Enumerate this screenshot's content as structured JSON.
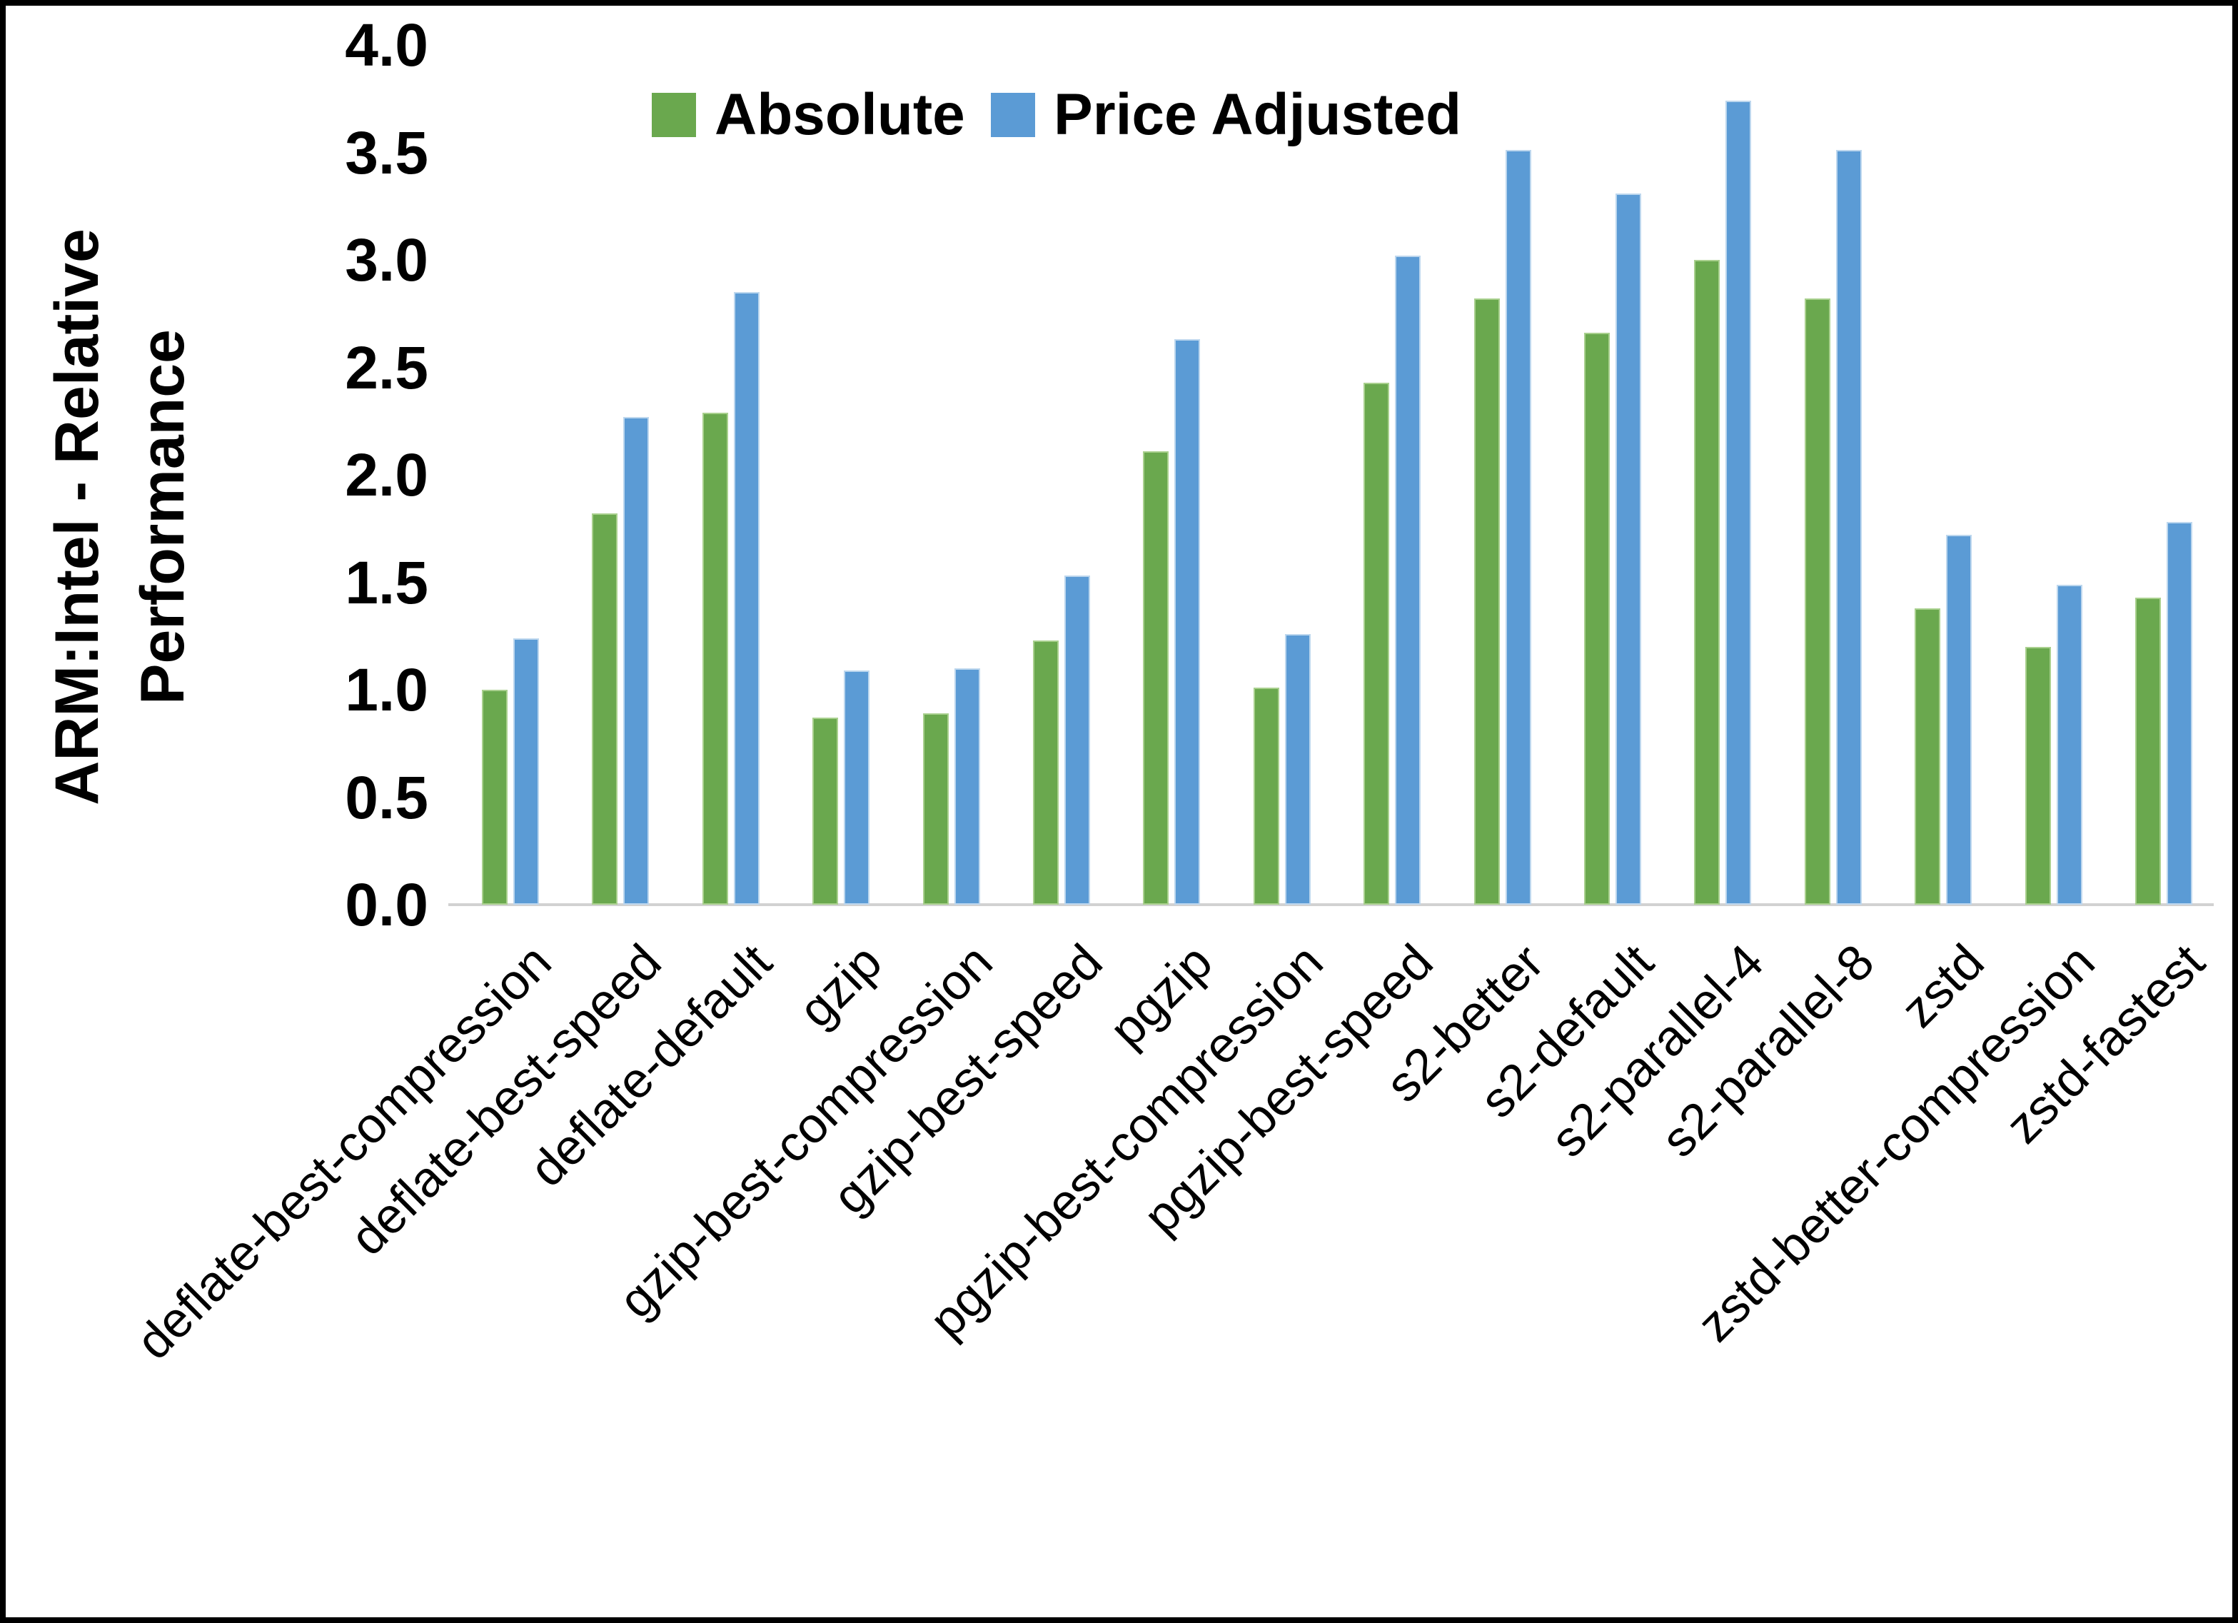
{
  "chart_data": {
    "type": "bar",
    "title": "",
    "ylabel": "ARM:Intel - Relative Performance",
    "xlabel": "",
    "ylim": [
      0.0,
      4.0
    ],
    "yticks": [
      "0.0",
      "0.5",
      "1.0",
      "1.5",
      "2.0",
      "2.5",
      "3.0",
      "3.5",
      "4.0"
    ],
    "grid": false,
    "legend_position": "top-center",
    "categories": [
      "deflate-best-compression",
      "deflate-best-speed",
      "deflate-default",
      "gzip",
      "gzip-best-compression",
      "gzip-best-speed",
      "pgzip",
      "pgzip-best-compression",
      "pgzip-best-speed",
      "s2-better",
      "s2-default",
      "s2-parallel-4",
      "s2-parallel-8",
      "zstd",
      "zstd-better-compression",
      "zstd-fastest"
    ],
    "series": [
      {
        "name": "Absolute",
        "color": "#6aa84e",
        "edge_color": "#a9d08e",
        "values": [
          1.0,
          1.82,
          2.29,
          0.87,
          0.89,
          1.23,
          2.11,
          1.01,
          2.43,
          2.82,
          2.66,
          3.0,
          2.82,
          1.38,
          1.2,
          1.43
        ]
      },
      {
        "name": "Price Adjusted",
        "color": "#5b9bd5",
        "edge_color": "#bdd7ee",
        "values": [
          1.24,
          2.27,
          2.85,
          1.09,
          1.1,
          1.53,
          2.63,
          1.26,
          3.02,
          3.51,
          3.31,
          3.74,
          3.51,
          1.72,
          1.49,
          1.78
        ]
      }
    ],
    "axis_line_color": "#d2d2d2"
  }
}
